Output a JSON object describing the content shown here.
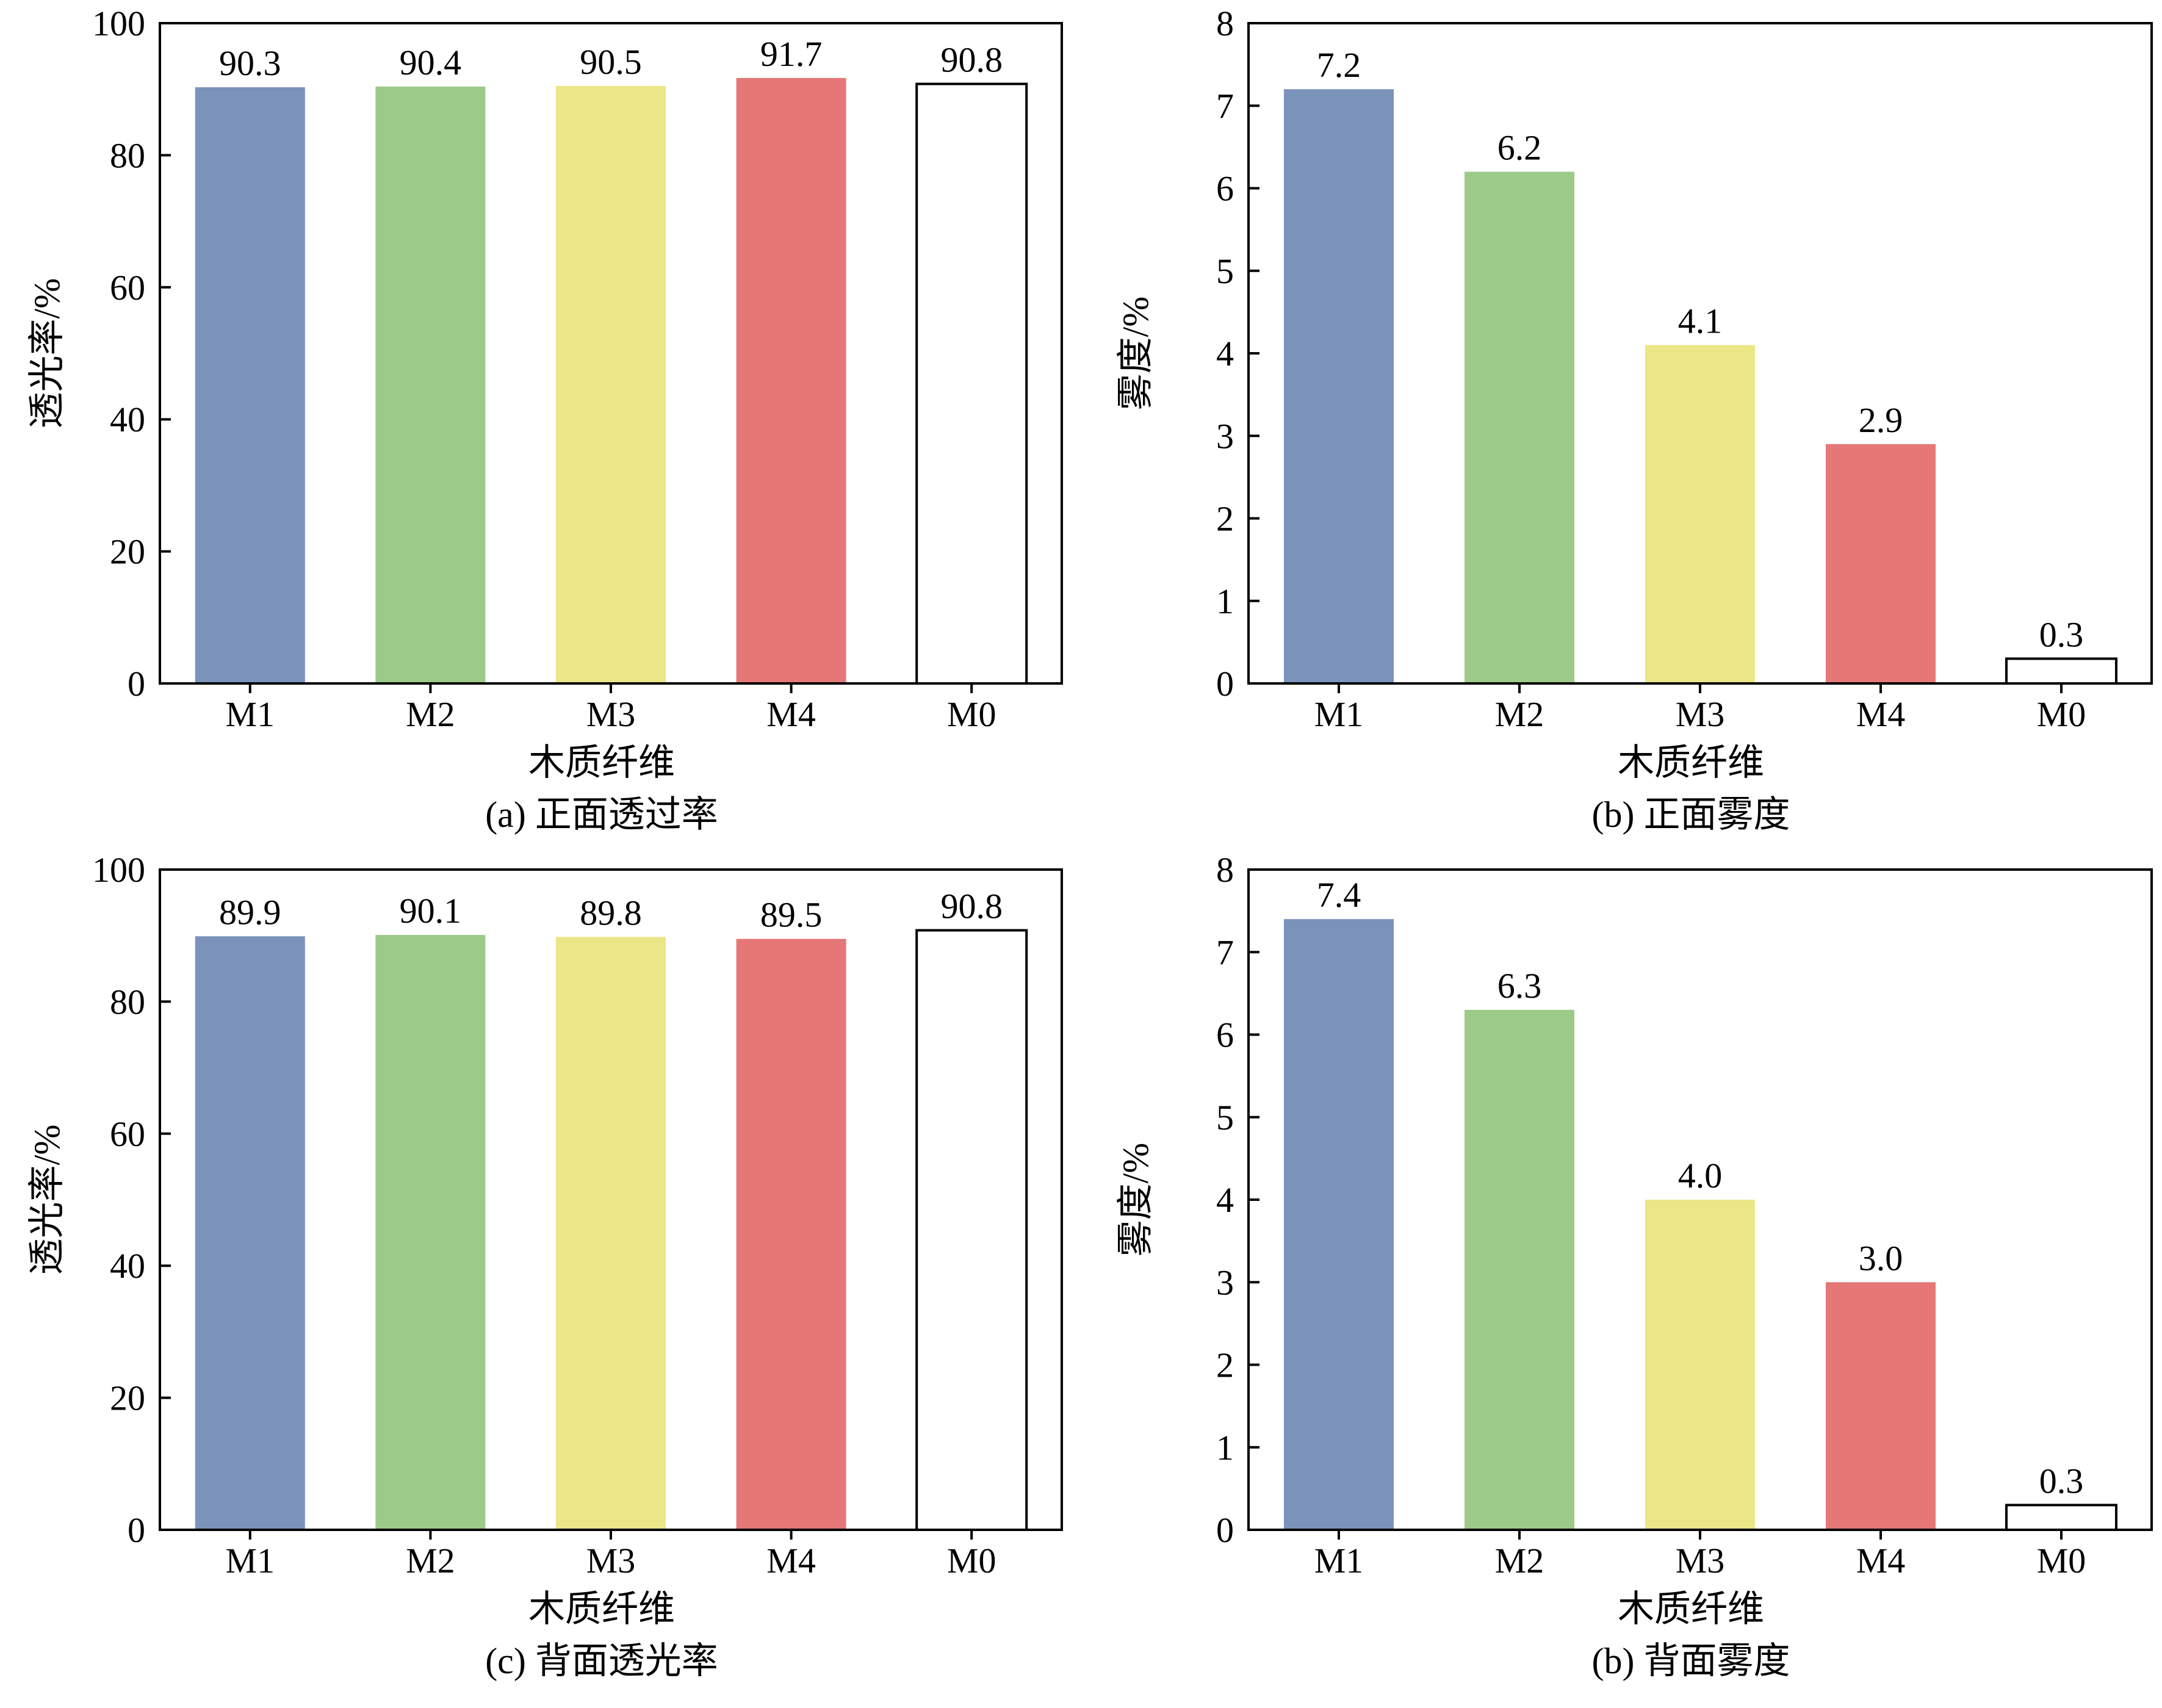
{
  "chart_data": [
    {
      "type": "bar",
      "panel": "a",
      "caption": "(a) 正面透过率",
      "xlabel": "木质纤维",
      "ylabel": "透光率/%",
      "categories": [
        "M1",
        "M2",
        "M3",
        "M4",
        "M0"
      ],
      "values": [
        90.3,
        90.4,
        90.5,
        91.7,
        90.8
      ],
      "value_labels": [
        "90.3",
        "90.4",
        "90.5",
        "91.7",
        "90.8"
      ],
      "ylim": [
        0,
        100
      ],
      "yticks": [
        0,
        20,
        40,
        60,
        80,
        100
      ],
      "bar_colors": [
        "#7b93ba",
        "#9ccb89",
        "#ebe687",
        "#e57776",
        "#ffffff"
      ],
      "grid": false
    },
    {
      "type": "bar",
      "panel": "b",
      "caption": "(b) 正面雾度",
      "xlabel": "木质纤维",
      "ylabel": "雾度/%",
      "categories": [
        "M1",
        "M2",
        "M3",
        "M4",
        "M0"
      ],
      "values": [
        7.2,
        6.2,
        4.1,
        2.9,
        0.3
      ],
      "value_labels": [
        "7.2",
        "6.2",
        "4.1",
        "2.9",
        "0.3"
      ],
      "ylim": [
        0,
        8
      ],
      "yticks": [
        0,
        1,
        2,
        3,
        4,
        5,
        6,
        7,
        8
      ],
      "bar_colors": [
        "#7b93ba",
        "#9ccb89",
        "#ebe687",
        "#e57776",
        "#ffffff"
      ],
      "grid": false
    },
    {
      "type": "bar",
      "panel": "c",
      "caption": "(c) 背面透光率",
      "xlabel": "木质纤维",
      "ylabel": "透光率/%",
      "categories": [
        "M1",
        "M2",
        "M3",
        "M4",
        "M0"
      ],
      "values": [
        89.9,
        90.1,
        89.8,
        89.5,
        90.8
      ],
      "value_labels": [
        "89.9",
        "90.1",
        "89.8",
        "89.5",
        "90.8"
      ],
      "ylim": [
        0,
        100
      ],
      "yticks": [
        0,
        20,
        40,
        60,
        80,
        100
      ],
      "bar_colors": [
        "#7b93ba",
        "#9ccb89",
        "#ebe687",
        "#e57776",
        "#ffffff"
      ],
      "grid": false
    },
    {
      "type": "bar",
      "panel": "d",
      "caption": "(b) 背面雾度",
      "xlabel": "木质纤维",
      "ylabel": "雾度/%",
      "categories": [
        "M1",
        "M2",
        "M3",
        "M4",
        "M0"
      ],
      "values": [
        7.4,
        6.3,
        4.0,
        3.0,
        0.3
      ],
      "value_labels": [
        "7.4",
        "6.3",
        "4.0",
        "3.0",
        "0.3"
      ],
      "ylim": [
        0,
        8
      ],
      "yticks": [
        0,
        1,
        2,
        3,
        4,
        5,
        6,
        7,
        8
      ],
      "bar_colors": [
        "#7b93ba",
        "#9ccb89",
        "#ebe687",
        "#e57776",
        "#ffffff"
      ],
      "grid": false
    }
  ]
}
